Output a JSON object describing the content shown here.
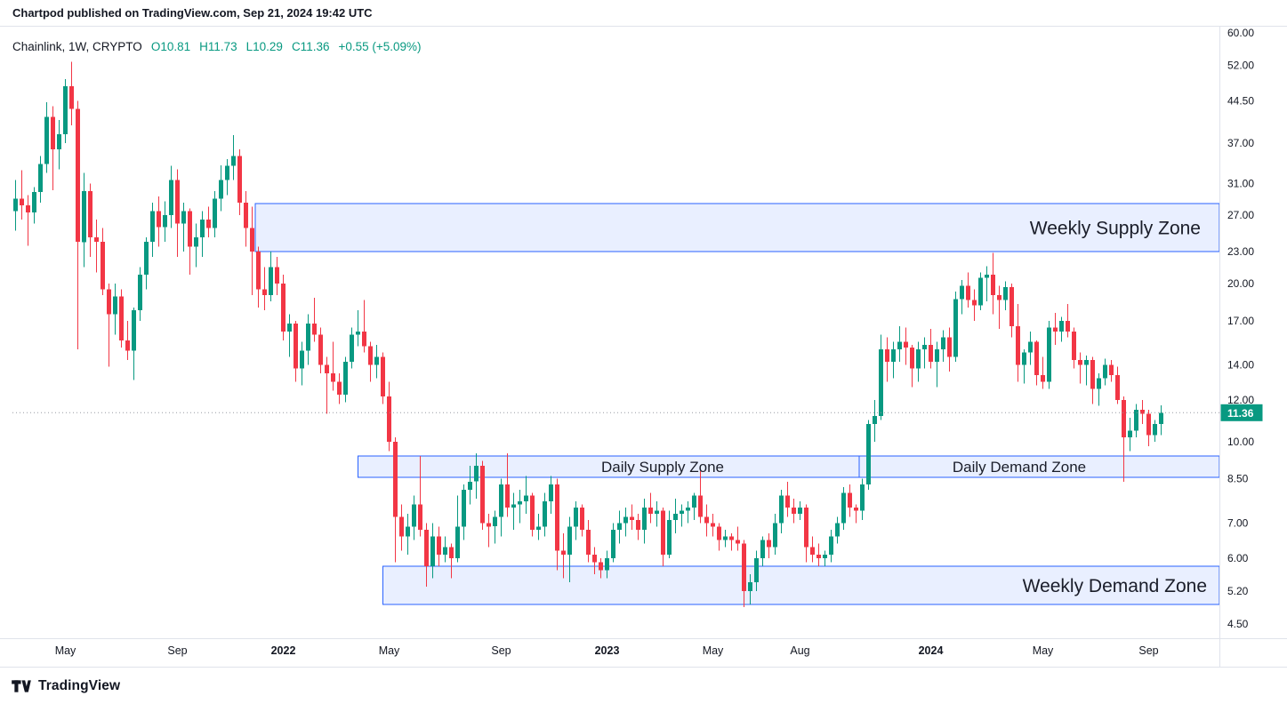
{
  "page": {
    "publish_note": "Chartpod published on TradingView.com, Sep 21, 2024 19:42 UTC",
    "brand": "TradingView"
  },
  "legend": {
    "title": "Chainlink, 1W, CRYPTO",
    "open": "O10.81",
    "high": "H11.73",
    "low": "L10.29",
    "close": "C11.36",
    "change": "+0.55 (+5.09%)"
  },
  "colors": {
    "up": "#089981",
    "down": "#F23645",
    "zone_fill": "rgba(41, 98, 255, 0.10)",
    "zone_border": "#2962FF",
    "zone_label_text": "#1a1d29",
    "axis_text": "#131722",
    "separator": "#e0e3eb",
    "price_line": "#9598a1",
    "price_tag_bg": "#089981",
    "price_tag_text": "#ffffff"
  },
  "chart_data": {
    "type": "candlestick",
    "title": "Chainlink 1W CRYPTO",
    "interval": "1W",
    "scale": "logarithmic",
    "grid": false,
    "legend_position": "top-left",
    "last_price": 11.36,
    "y_range_top": 60,
    "y_range_bottom": 4.5,
    "y_ticks": [
      60,
      52,
      44.5,
      37,
      31,
      27,
      23,
      20,
      17,
      14,
      12,
      10,
      8.5,
      7,
      6,
      5.2,
      4.5
    ],
    "x_labels": [
      {
        "label": "May",
        "index": 8,
        "bold": false
      },
      {
        "label": "Sep",
        "index": 26,
        "bold": false
      },
      {
        "label": "2022",
        "index": 43,
        "bold": true
      },
      {
        "label": "May",
        "index": 60,
        "bold": false
      },
      {
        "label": "Sep",
        "index": 78,
        "bold": false
      },
      {
        "label": "2023",
        "index": 95,
        "bold": true
      },
      {
        "label": "May",
        "index": 112,
        "bold": false
      },
      {
        "label": "Aug",
        "index": 126,
        "bold": false
      },
      {
        "label": "2024",
        "index": 147,
        "bold": true
      },
      {
        "label": "May",
        "index": 165,
        "bold": false
      },
      {
        "label": "Sep",
        "index": 182,
        "bold": false
      }
    ],
    "zones": [
      {
        "name": "weekly-supply-zone",
        "label": "Weekly Supply Zone",
        "price_top": 28.4,
        "price_bottom": 23.0,
        "start_index": 39,
        "end_index": null,
        "label_x": 1350,
        "label_anchor": "end",
        "font_size": 21
      },
      {
        "name": "daily-supply-zone",
        "label": "Daily Supply Zone",
        "price_top": 9.4,
        "price_bottom": 8.55,
        "start_index": 55.5,
        "end_index": 136,
        "label_x": 745,
        "label_anchor": "middle",
        "font_size": 17
      },
      {
        "name": "daily-demand-zone",
        "label": "Daily Demand Zone",
        "price_top": 9.4,
        "price_bottom": 8.55,
        "start_index": 136,
        "end_index": null,
        "label_x": 1146,
        "label_anchor": "middle",
        "font_size": 17
      },
      {
        "name": "weekly-demand-zone",
        "label": "Weekly Demand Zone",
        "price_top": 5.8,
        "price_bottom": 4.9,
        "start_index": 59.5,
        "end_index": null,
        "label_x": 1357,
        "label_anchor": "end",
        "font_size": 21
      }
    ],
    "candles_ohlc": [
      [
        27.5,
        31.5,
        25.2,
        29.0
      ],
      [
        29.0,
        32.9,
        26.5,
        28.2
      ],
      [
        28.2,
        29.5,
        23.6,
        27.3
      ],
      [
        27.3,
        30.5,
        26.0,
        29.9
      ],
      [
        29.9,
        35.0,
        28.5,
        33.8
      ],
      [
        33.8,
        44.3,
        32.5,
        41.5
      ],
      [
        41.5,
        43.5,
        30.1,
        36.0
      ],
      [
        36.0,
        41.0,
        33.0,
        38.5
      ],
      [
        38.5,
        49.0,
        37.0,
        47.5
      ],
      [
        47.5,
        52.9,
        40.0,
        43.0
      ],
      [
        43.0,
        44.5,
        15.0,
        24.0
      ],
      [
        24.0,
        32.5,
        21.5,
        30.0
      ],
      [
        30.0,
        31.0,
        22.5,
        24.5
      ],
      [
        24.5,
        26.5,
        21.0,
        24.0
      ],
      [
        24.0,
        25.5,
        19.0,
        19.5
      ],
      [
        19.5,
        20.0,
        13.9,
        17.5
      ],
      [
        17.5,
        20.0,
        16.0,
        18.9
      ],
      [
        18.9,
        19.5,
        15.1,
        15.6
      ],
      [
        15.6,
        17.0,
        14.3,
        14.9
      ],
      [
        14.9,
        18.0,
        13.1,
        17.8
      ],
      [
        17.8,
        21.5,
        17.0,
        20.8
      ],
      [
        20.8,
        24.5,
        19.5,
        24.0
      ],
      [
        24.0,
        28.5,
        22.5,
        27.5
      ],
      [
        27.5,
        29.3,
        23.5,
        25.6
      ],
      [
        25.6,
        28.7,
        24.0,
        27.0
      ],
      [
        27.0,
        33.5,
        25.5,
        31.5
      ],
      [
        31.5,
        33.0,
        22.5,
        26.0
      ],
      [
        26.0,
        28.5,
        23.0,
        27.5
      ],
      [
        27.5,
        27.8,
        20.8,
        23.5
      ],
      [
        23.5,
        26.0,
        21.5,
        24.5
      ],
      [
        24.5,
        27.5,
        22.5,
        26.5
      ],
      [
        26.5,
        28.0,
        24.5,
        25.5
      ],
      [
        25.5,
        30.0,
        24.5,
        29.0
      ],
      [
        29.0,
        33.6,
        27.5,
        31.5
      ],
      [
        31.5,
        34.5,
        29.5,
        33.5
      ],
      [
        33.5,
        38.3,
        31.5,
        35.0
      ],
      [
        35.0,
        36.0,
        27.0,
        28.5
      ],
      [
        28.5,
        30.0,
        23.5,
        25.5
      ],
      [
        25.5,
        28.0,
        19.0,
        23.0
      ],
      [
        23.0,
        23.5,
        18.0,
        19.5
      ],
      [
        19.5,
        21.5,
        17.8,
        19.0
      ],
      [
        19.0,
        23.0,
        18.5,
        21.5
      ],
      [
        21.5,
        22.5,
        19.0,
        20.0
      ],
      [
        20.0,
        20.8,
        15.6,
        16.2
      ],
      [
        16.2,
        17.5,
        14.5,
        16.8
      ],
      [
        16.8,
        17.0,
        13.0,
        13.8
      ],
      [
        13.8,
        15.5,
        12.8,
        14.9
      ],
      [
        14.9,
        17.5,
        14.0,
        16.8
      ],
      [
        16.8,
        18.8,
        15.5,
        16.0
      ],
      [
        16.0,
        16.5,
        13.5,
        14.0
      ],
      [
        14.0,
        14.5,
        11.3,
        13.5
      ],
      [
        13.5,
        15.5,
        12.5,
        13.0
      ],
      [
        13.0,
        13.5,
        11.8,
        12.3
      ],
      [
        12.3,
        14.5,
        11.9,
        14.2
      ],
      [
        14.2,
        16.5,
        13.8,
        16.0
      ],
      [
        16.0,
        17.8,
        15.2,
        16.2
      ],
      [
        16.2,
        18.6,
        14.8,
        15.2
      ],
      [
        15.2,
        15.5,
        13.0,
        14.0
      ],
      [
        14.0,
        15.3,
        13.2,
        14.5
      ],
      [
        14.5,
        14.8,
        11.8,
        12.2
      ],
      [
        12.2,
        13.0,
        9.6,
        10.0
      ],
      [
        10.0,
        10.2,
        5.9,
        7.2
      ],
      [
        7.2,
        7.6,
        6.2,
        6.6
      ],
      [
        6.6,
        7.3,
        6.1,
        6.9
      ],
      [
        6.9,
        7.9,
        6.5,
        7.6
      ],
      [
        7.6,
        9.4,
        6.6,
        6.8
      ],
      [
        6.8,
        7.0,
        5.3,
        5.8
      ],
      [
        5.8,
        7.0,
        5.5,
        6.6
      ],
      [
        6.6,
        6.9,
        5.8,
        6.1
      ],
      [
        6.1,
        6.6,
        5.9,
        6.3
      ],
      [
        6.3,
        6.4,
        5.5,
        6.0
      ],
      [
        6.0,
        7.9,
        5.9,
        6.9
      ],
      [
        6.9,
        8.3,
        6.5,
        8.1
      ],
      [
        8.1,
        9.0,
        7.6,
        8.4
      ],
      [
        8.4,
        9.5,
        7.8,
        9.0
      ],
      [
        9.0,
        9.2,
        6.8,
        7.0
      ],
      [
        7.0,
        7.3,
        6.3,
        6.9
      ],
      [
        6.9,
        7.4,
        6.4,
        7.2
      ],
      [
        7.2,
        8.5,
        6.6,
        8.3
      ],
      [
        8.3,
        9.5,
        7.2,
        7.5
      ],
      [
        7.5,
        8.0,
        6.8,
        7.6
      ],
      [
        7.6,
        8.1,
        7.0,
        7.7
      ],
      [
        7.7,
        8.6,
        7.3,
        7.9
      ],
      [
        7.9,
        8.0,
        6.6,
        6.8
      ],
      [
        6.8,
        7.3,
        6.5,
        6.9
      ],
      [
        6.9,
        8.0,
        6.6,
        7.7
      ],
      [
        7.7,
        8.6,
        7.3,
        8.3
      ],
      [
        8.3,
        8.5,
        5.7,
        6.2
      ],
      [
        6.2,
        6.7,
        5.5,
        6.1
      ],
      [
        6.1,
        7.2,
        5.4,
        6.9
      ],
      [
        6.9,
        7.7,
        6.5,
        7.5
      ],
      [
        7.5,
        7.6,
        6.6,
        6.8
      ],
      [
        6.8,
        7.1,
        5.9,
        6.1
      ],
      [
        6.1,
        6.3,
        5.6,
        5.9
      ],
      [
        5.9,
        6.0,
        5.5,
        5.7
      ],
      [
        5.7,
        6.2,
        5.5,
        6.0
      ],
      [
        6.0,
        7.0,
        5.9,
        6.8
      ],
      [
        6.8,
        7.4,
        6.4,
        7.0
      ],
      [
        7.0,
        7.5,
        6.6,
        7.2
      ],
      [
        7.2,
        7.6,
        6.8,
        7.1
      ],
      [
        7.1,
        7.3,
        6.5,
        6.8
      ],
      [
        6.8,
        7.8,
        6.4,
        7.5
      ],
      [
        7.5,
        8.0,
        7.0,
        7.3
      ],
      [
        7.3,
        7.7,
        6.9,
        7.4
      ],
      [
        7.4,
        7.5,
        5.8,
        6.1
      ],
      [
        6.1,
        7.4,
        6.0,
        7.1
      ],
      [
        7.1,
        7.8,
        6.7,
        7.3
      ],
      [
        7.3,
        7.6,
        6.9,
        7.4
      ],
      [
        7.4,
        7.7,
        7.0,
        7.5
      ],
      [
        7.5,
        8.0,
        7.1,
        7.9
      ],
      [
        7.9,
        8.8,
        7.0,
        7.2
      ],
      [
        7.2,
        7.6,
        6.6,
        7.0
      ],
      [
        7.0,
        7.3,
        6.6,
        6.9
      ],
      [
        6.9,
        7.0,
        6.2,
        6.5
      ],
      [
        6.5,
        6.8,
        6.3,
        6.6
      ],
      [
        6.6,
        6.7,
        6.2,
        6.5
      ],
      [
        6.5,
        6.9,
        6.2,
        6.4
      ],
      [
        6.4,
        6.5,
        4.85,
        5.2
      ],
      [
        5.2,
        5.6,
        4.9,
        5.4
      ],
      [
        5.4,
        6.2,
        5.2,
        6.0
      ],
      [
        6.0,
        6.6,
        5.8,
        6.5
      ],
      [
        6.5,
        6.7,
        6.0,
        6.3
      ],
      [
        6.3,
        7.3,
        6.1,
        7.0
      ],
      [
        7.0,
        8.1,
        6.7,
        7.9
      ],
      [
        7.9,
        8.4,
        7.2,
        7.5
      ],
      [
        7.5,
        7.8,
        7.0,
        7.3
      ],
      [
        7.3,
        7.7,
        7.1,
        7.5
      ],
      [
        7.5,
        7.6,
        5.9,
        6.3
      ],
      [
        6.3,
        6.6,
        5.9,
        6.1
      ],
      [
        6.1,
        6.4,
        5.8,
        6.0
      ],
      [
        6.0,
        6.2,
        5.8,
        6.1
      ],
      [
        6.1,
        6.8,
        5.9,
        6.6
      ],
      [
        6.6,
        7.2,
        6.4,
        7.0
      ],
      [
        7.0,
        8.2,
        6.8,
        8.0
      ],
      [
        8.0,
        8.3,
        7.2,
        7.5
      ],
      [
        7.5,
        7.6,
        7.0,
        7.4
      ],
      [
        7.4,
        8.5,
        7.1,
        8.3
      ],
      [
        8.3,
        11.0,
        8.1,
        10.8
      ],
      [
        10.8,
        12.0,
        10.0,
        11.2
      ],
      [
        11.2,
        16.0,
        11.0,
        15.0
      ],
      [
        15.0,
        15.8,
        13.0,
        14.2
      ],
      [
        14.2,
        15.5,
        13.2,
        15.0
      ],
      [
        15.0,
        16.6,
        14.2,
        15.5
      ],
      [
        15.5,
        16.5,
        14.0,
        15.1
      ],
      [
        15.1,
        15.3,
        12.7,
        13.8
      ],
      [
        13.8,
        15.5,
        13.0,
        15.0
      ],
      [
        15.0,
        15.8,
        13.8,
        15.3
      ],
      [
        15.3,
        16.4,
        13.8,
        14.2
      ],
      [
        14.2,
        15.5,
        12.7,
        15.0
      ],
      [
        15.0,
        16.3,
        14.2,
        15.8
      ],
      [
        15.8,
        16.5,
        13.6,
        14.5
      ],
      [
        14.5,
        19.3,
        14.2,
        18.7
      ],
      [
        18.7,
        20.3,
        17.5,
        19.8
      ],
      [
        19.8,
        21.0,
        18.0,
        18.6
      ],
      [
        18.6,
        19.5,
        17.0,
        18.2
      ],
      [
        18.2,
        21.0,
        17.8,
        20.5
      ],
      [
        20.5,
        21.6,
        18.5,
        20.8
      ],
      [
        20.8,
        22.9,
        17.5,
        19.0
      ],
      [
        19.0,
        19.8,
        16.4,
        18.6
      ],
      [
        18.6,
        20.2,
        17.8,
        19.7
      ],
      [
        19.7,
        20.0,
        15.8,
        16.6
      ],
      [
        16.6,
        18.3,
        13.0,
        14.0
      ],
      [
        14.0,
        15.0,
        12.9,
        14.8
      ],
      [
        14.8,
        16.2,
        14.0,
        15.5
      ],
      [
        15.5,
        15.6,
        12.8,
        13.4
      ],
      [
        13.4,
        14.5,
        12.6,
        13.0
      ],
      [
        13.0,
        17.0,
        12.6,
        16.5
      ],
      [
        16.5,
        17.6,
        15.3,
        16.2
      ],
      [
        16.2,
        17.3,
        15.5,
        17.0
      ],
      [
        17.0,
        18.3,
        15.8,
        16.2
      ],
      [
        16.2,
        16.5,
        13.8,
        14.3
      ],
      [
        14.3,
        14.8,
        12.9,
        14.0
      ],
      [
        14.0,
        14.6,
        12.8,
        14.3
      ],
      [
        14.3,
        14.5,
        11.8,
        12.6
      ],
      [
        12.6,
        13.5,
        11.7,
        13.2
      ],
      [
        13.2,
        14.4,
        12.8,
        14.0
      ],
      [
        14.0,
        14.3,
        13.0,
        13.4
      ],
      [
        13.4,
        13.9,
        11.8,
        12.0
      ],
      [
        12.0,
        12.2,
        8.4,
        10.2
      ],
      [
        10.2,
        11.1,
        9.6,
        10.5
      ],
      [
        10.5,
        11.8,
        10.2,
        11.5
      ],
      [
        11.5,
        12.0,
        10.8,
        11.3
      ],
      [
        11.3,
        11.5,
        9.8,
        10.3
      ],
      [
        10.3,
        11.0,
        10.0,
        10.81
      ],
      [
        10.81,
        11.73,
        10.29,
        11.36
      ]
    ]
  }
}
